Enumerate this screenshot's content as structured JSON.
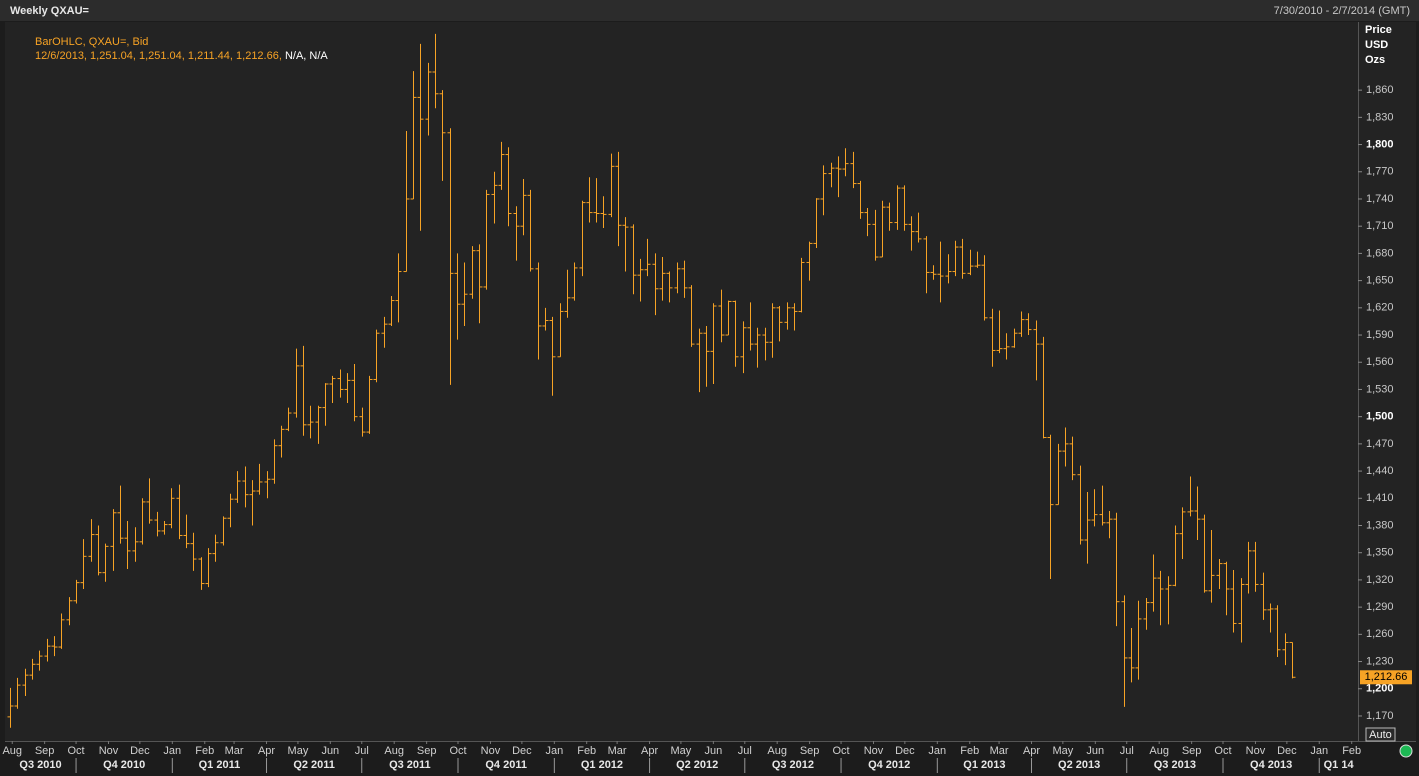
{
  "chart_data": {
    "type": "ohlc",
    "title": "Weekly QXAU=",
    "date_range": "7/30/2010 - 2/7/2014 (GMT)",
    "legend": [
      "BarOHLC, QXAU=, Bid",
      "12/6/2013, 1,251.04, 1,251.04, 1,211.44, 1,212.66,",
      "N/A, N/A"
    ],
    "y_axis_label": [
      "Price",
      "USD",
      "Ozs"
    ],
    "color": "#f7a325",
    "last_value_label": "1,212.66",
    "auto_button": "Auto",
    "xlim": [
      -0.7,
      184
    ],
    "ylim": [
      1143.5,
      1923
    ],
    "yticks": [
      {
        "value": 1170,
        "label": "1,170"
      },
      {
        "value": 1200,
        "label": "1,200"
      },
      {
        "value": 1230,
        "label": "1,230"
      },
      {
        "value": 1260,
        "label": "1,260"
      },
      {
        "value": 1290,
        "label": "1,290"
      },
      {
        "value": 1320,
        "label": "1,320"
      },
      {
        "value": 1350,
        "label": "1,350"
      },
      {
        "value": 1380,
        "label": "1,380"
      },
      {
        "value": 1410,
        "label": "1,410"
      },
      {
        "value": 1440,
        "label": "1,440"
      },
      {
        "value": 1470,
        "label": "1,470"
      },
      {
        "value": 1500,
        "label": "1,500"
      },
      {
        "value": 1530,
        "label": "1,530"
      },
      {
        "value": 1560,
        "label": "1,560"
      },
      {
        "value": 1590,
        "label": "1,590"
      },
      {
        "value": 1620,
        "label": "1,620"
      },
      {
        "value": 1650,
        "label": "1,650"
      },
      {
        "value": 1680,
        "label": "1,680"
      },
      {
        "value": 1710,
        "label": "1,710"
      },
      {
        "value": 1740,
        "label": "1,740"
      },
      {
        "value": 1770,
        "label": "1,770"
      },
      {
        "value": 1800,
        "label": "1,800"
      },
      {
        "value": 1830,
        "label": "1,830"
      },
      {
        "value": 1860,
        "label": "1,860"
      }
    ],
    "xticks": [
      {
        "value": 0.29,
        "label": "Aug"
      },
      {
        "value": 4.71,
        "label": "Sep"
      },
      {
        "value": 9,
        "label": "Oct"
      },
      {
        "value": 13.43,
        "label": "Nov"
      },
      {
        "value": 17.71,
        "label": "Dec"
      },
      {
        "value": 22.14,
        "label": "Jan"
      },
      {
        "value": 26.57,
        "label": "Feb"
      },
      {
        "value": 30.57,
        "label": "Mar"
      },
      {
        "value": 35,
        "label": "Apr"
      },
      {
        "value": 39.29,
        "label": "May"
      },
      {
        "value": 43.71,
        "label": "Jun"
      },
      {
        "value": 48,
        "label": "Jul"
      },
      {
        "value": 52.43,
        "label": "Aug"
      },
      {
        "value": 56.86,
        "label": "Sep"
      },
      {
        "value": 61.14,
        "label": "Oct"
      },
      {
        "value": 65.57,
        "label": "Nov"
      },
      {
        "value": 69.86,
        "label": "Dec"
      },
      {
        "value": 74.29,
        "label": "Jan"
      },
      {
        "value": 78.71,
        "label": "Feb"
      },
      {
        "value": 82.86,
        "label": "Mar"
      },
      {
        "value": 87.29,
        "label": "Apr"
      },
      {
        "value": 91.57,
        "label": "May"
      },
      {
        "value": 96,
        "label": "Jun"
      },
      {
        "value": 100.29,
        "label": "Jul"
      },
      {
        "value": 104.71,
        "label": "Aug"
      },
      {
        "value": 109.14,
        "label": "Sep"
      },
      {
        "value": 113.43,
        "label": "Oct"
      },
      {
        "value": 117.86,
        "label": "Nov"
      },
      {
        "value": 122.14,
        "label": "Dec"
      },
      {
        "value": 126.57,
        "label": "Jan"
      },
      {
        "value": 131,
        "label": "Feb"
      },
      {
        "value": 135,
        "label": "Mar"
      },
      {
        "value": 139.43,
        "label": "Apr"
      },
      {
        "value": 143.71,
        "label": "May"
      },
      {
        "value": 148.14,
        "label": "Jun"
      },
      {
        "value": 152.43,
        "label": "Jul"
      },
      {
        "value": 156.86,
        "label": "Aug"
      },
      {
        "value": 161.29,
        "label": "Sep"
      },
      {
        "value": 165.57,
        "label": "Oct"
      },
      {
        "value": 170,
        "label": "Nov"
      },
      {
        "value": 174.29,
        "label": "Dec"
      },
      {
        "value": 178.71,
        "label": "Jan"
      },
      {
        "value": 183.14,
        "label": "Feb"
      }
    ],
    "x2ticks": [
      {
        "value": -4.14,
        "label": "Q3 2010"
      },
      {
        "value": 9,
        "label": "Q4 2010"
      },
      {
        "value": 22.14,
        "label": "Q1 2011"
      },
      {
        "value": 35,
        "label": "Q2 2011"
      },
      {
        "value": 48,
        "label": "Q3 2011"
      },
      {
        "value": 61.14,
        "label": "Q4 2011"
      },
      {
        "value": 74.29,
        "label": "Q1 2012"
      },
      {
        "value": 87.29,
        "label": "Q2 2012"
      },
      {
        "value": 100.29,
        "label": "Q3 2012"
      },
      {
        "value": 113.43,
        "label": "Q4 2012"
      },
      {
        "value": 126.57,
        "label": "Q1 2013"
      },
      {
        "value": 139.43,
        "label": "Q2 2013"
      },
      {
        "value": 152.43,
        "label": "Q3 2013"
      },
      {
        "value": 165.57,
        "label": "Q4 2013"
      },
      {
        "value": 178.71,
        "label": "Q1 14"
      }
    ],
    "ohlc": [
      [
        1169,
        1201,
        1157,
        1181
      ],
      [
        1181,
        1212,
        1178,
        1204
      ],
      [
        1204,
        1222,
        1192,
        1215
      ],
      [
        1215,
        1233,
        1210,
        1227
      ],
      [
        1227,
        1242,
        1220,
        1236
      ],
      [
        1236,
        1255,
        1230,
        1247
      ],
      [
        1247,
        1258,
        1236,
        1246
      ],
      [
        1246,
        1283,
        1244,
        1276
      ],
      [
        1276,
        1301,
        1270,
        1297
      ],
      [
        1297,
        1320,
        1294,
        1317
      ],
      [
        1317,
        1365,
        1310,
        1346
      ],
      [
        1346,
        1387,
        1340,
        1370
      ],
      [
        1370,
        1380,
        1325,
        1328
      ],
      [
        1328,
        1360,
        1318,
        1357
      ],
      [
        1357,
        1398,
        1330,
        1394
      ],
      [
        1394,
        1424,
        1360,
        1366
      ],
      [
        1366,
        1385,
        1332,
        1352
      ],
      [
        1352,
        1378,
        1340,
        1362
      ],
      [
        1362,
        1410,
        1359,
        1406
      ],
      [
        1406,
        1432,
        1382,
        1386
      ],
      [
        1386,
        1395,
        1368,
        1374
      ],
      [
        1374,
        1385,
        1370,
        1381
      ],
      [
        1381,
        1421,
        1377,
        1410
      ],
      [
        1410,
        1425,
        1365,
        1369
      ],
      [
        1369,
        1392,
        1355,
        1360
      ],
      [
        1360,
        1372,
        1330,
        1343
      ],
      [
        1343,
        1345,
        1309,
        1316
      ],
      [
        1316,
        1355,
        1312,
        1349
      ],
      [
        1349,
        1370,
        1340,
        1361
      ],
      [
        1361,
        1390,
        1358,
        1388
      ],
      [
        1388,
        1415,
        1378,
        1409
      ],
      [
        1409,
        1440,
        1405,
        1429
      ],
      [
        1429,
        1445,
        1400,
        1414
      ],
      [
        1414,
        1430,
        1380,
        1418
      ],
      [
        1418,
        1448,
        1414,
        1428
      ],
      [
        1428,
        1440,
        1410,
        1431
      ],
      [
        1431,
        1475,
        1426,
        1468
      ],
      [
        1468,
        1490,
        1455,
        1486
      ],
      [
        1486,
        1510,
        1484,
        1504
      ],
      [
        1504,
        1575,
        1499,
        1556
      ],
      [
        1556,
        1578,
        1479,
        1491
      ],
      [
        1491,
        1512,
        1476,
        1494
      ],
      [
        1494,
        1512,
        1470,
        1510
      ],
      [
        1510,
        1537,
        1490,
        1536
      ],
      [
        1536,
        1545,
        1515,
        1542
      ],
      [
        1542,
        1552,
        1521,
        1530
      ],
      [
        1530,
        1548,
        1515,
        1540
      ],
      [
        1540,
        1558,
        1495,
        1500
      ],
      [
        1500,
        1510,
        1478,
        1483
      ],
      [
        1483,
        1545,
        1481,
        1541
      ],
      [
        1541,
        1596,
        1538,
        1592
      ],
      [
        1592,
        1610,
        1576,
        1602
      ],
      [
        1602,
        1633,
        1600,
        1628
      ],
      [
        1628,
        1680,
        1604,
        1660
      ],
      [
        1660,
        1815,
        1660,
        1740
      ],
      [
        1740,
        1881,
        1740,
        1852
      ],
      [
        1852,
        1911,
        1705,
        1828
      ],
      [
        1828,
        1890,
        1810,
        1880
      ],
      [
        1880,
        1922,
        1840,
        1856
      ],
      [
        1856,
        1860,
        1760,
        1813
      ],
      [
        1813,
        1818,
        1535,
        1658
      ],
      [
        1658,
        1680,
        1585,
        1624
      ],
      [
        1624,
        1670,
        1600,
        1635
      ],
      [
        1635,
        1688,
        1630,
        1683
      ],
      [
        1683,
        1690,
        1603,
        1643
      ],
      [
        1643,
        1750,
        1640,
        1745
      ],
      [
        1745,
        1770,
        1713,
        1755
      ],
      [
        1755,
        1803,
        1750,
        1789
      ],
      [
        1789,
        1797,
        1710,
        1724
      ],
      [
        1724,
        1732,
        1672,
        1710
      ],
      [
        1710,
        1762,
        1700,
        1744
      ],
      [
        1744,
        1750,
        1660,
        1663
      ],
      [
        1663,
        1670,
        1563,
        1600
      ],
      [
        1600,
        1620,
        1595,
        1606
      ],
      [
        1606,
        1610,
        1523,
        1566
      ],
      [
        1566,
        1625,
        1566,
        1616
      ],
      [
        1616,
        1662,
        1609,
        1631
      ],
      [
        1631,
        1670,
        1628,
        1664
      ],
      [
        1664,
        1738,
        1655,
        1736
      ],
      [
        1736,
        1764,
        1714,
        1725
      ],
      [
        1725,
        1763,
        1714,
        1724
      ],
      [
        1724,
        1743,
        1708,
        1723
      ],
      [
        1723,
        1790,
        1720,
        1776
      ],
      [
        1776,
        1792,
        1688,
        1711
      ],
      [
        1711,
        1720,
        1660,
        1709
      ],
      [
        1709,
        1712,
        1635,
        1656
      ],
      [
        1656,
        1674,
        1627,
        1662
      ],
      [
        1662,
        1696,
        1655,
        1668
      ],
      [
        1668,
        1680,
        1612,
        1641
      ],
      [
        1641,
        1676,
        1628,
        1658
      ],
      [
        1658,
        1660,
        1626,
        1642
      ],
      [
        1642,
        1670,
        1636,
        1663
      ],
      [
        1663,
        1672,
        1631,
        1642
      ],
      [
        1642,
        1645,
        1577,
        1580
      ],
      [
        1580,
        1597,
        1527,
        1592
      ],
      [
        1592,
        1600,
        1533,
        1572
      ],
      [
        1572,
        1625,
        1536,
        1622
      ],
      [
        1622,
        1640,
        1582,
        1590
      ],
      [
        1590,
        1628,
        1590,
        1627
      ],
      [
        1627,
        1628,
        1555,
        1566
      ],
      [
        1566,
        1605,
        1548,
        1598
      ],
      [
        1598,
        1626,
        1573,
        1580
      ],
      [
        1580,
        1598,
        1554,
        1590
      ],
      [
        1590,
        1598,
        1562,
        1582
      ],
      [
        1582,
        1625,
        1565,
        1620
      ],
      [
        1620,
        1622,
        1583,
        1604
      ],
      [
        1604,
        1626,
        1596,
        1620
      ],
      [
        1620,
        1625,
        1595,
        1616
      ],
      [
        1616,
        1675,
        1615,
        1670
      ],
      [
        1670,
        1693,
        1650,
        1691
      ],
      [
        1691,
        1741,
        1686,
        1740
      ],
      [
        1740,
        1777,
        1722,
        1768
      ],
      [
        1768,
        1780,
        1753,
        1774
      ],
      [
        1774,
        1787,
        1742,
        1773
      ],
      [
        1773,
        1796,
        1765,
        1779
      ],
      [
        1779,
        1792,
        1752,
        1757
      ],
      [
        1757,
        1760,
        1718,
        1725
      ],
      [
        1725,
        1730,
        1699,
        1712
      ],
      [
        1712,
        1728,
        1672,
        1676
      ],
      [
        1676,
        1738,
        1676,
        1731
      ],
      [
        1731,
        1736,
        1705,
        1714
      ],
      [
        1714,
        1755,
        1706,
        1752
      ],
      [
        1752,
        1755,
        1705,
        1712
      ],
      [
        1712,
        1721,
        1683,
        1704
      ],
      [
        1704,
        1725,
        1692,
        1696
      ],
      [
        1696,
        1699,
        1636,
        1659
      ],
      [
        1659,
        1667,
        1651,
        1657
      ],
      [
        1657,
        1693,
        1626,
        1655
      ],
      [
        1655,
        1679,
        1647,
        1660
      ],
      [
        1660,
        1694,
        1655,
        1687
      ],
      [
        1687,
        1696,
        1652,
        1658
      ],
      [
        1658,
        1684,
        1656,
        1666
      ],
      [
        1666,
        1682,
        1664,
        1667
      ],
      [
        1667,
        1678,
        1606,
        1609
      ],
      [
        1609,
        1619,
        1555,
        1573
      ],
      [
        1573,
        1617,
        1570,
        1575
      ],
      [
        1575,
        1592,
        1563,
        1577
      ],
      [
        1577,
        1597,
        1576,
        1592
      ],
      [
        1592,
        1616,
        1588,
        1607
      ],
      [
        1607,
        1614,
        1590,
        1596
      ],
      [
        1596,
        1606,
        1540,
        1580
      ],
      [
        1580,
        1588,
        1476,
        1477
      ],
      [
        1477,
        1480,
        1321,
        1403
      ],
      [
        1403,
        1470,
        1403,
        1462
      ],
      [
        1462,
        1488,
        1445,
        1470
      ],
      [
        1470,
        1478,
        1430,
        1436
      ],
      [
        1436,
        1446,
        1359,
        1364
      ],
      [
        1364,
        1417,
        1338,
        1386
      ],
      [
        1386,
        1420,
        1379,
        1392
      ],
      [
        1392,
        1424,
        1380,
        1383
      ],
      [
        1383,
        1396,
        1366,
        1387
      ],
      [
        1387,
        1394,
        1269,
        1296
      ],
      [
        1296,
        1303,
        1180,
        1234
      ],
      [
        1234,
        1267,
        1207,
        1223
      ],
      [
        1223,
        1297,
        1210,
        1277
      ],
      [
        1277,
        1300,
        1265,
        1295
      ],
      [
        1295,
        1348,
        1285,
        1322
      ],
      [
        1322,
        1330,
        1270,
        1310
      ],
      [
        1310,
        1324,
        1271,
        1314
      ],
      [
        1314,
        1380,
        1313,
        1371
      ],
      [
        1371,
        1400,
        1343,
        1395
      ],
      [
        1395,
        1434,
        1390,
        1396
      ],
      [
        1396,
        1423,
        1364,
        1387
      ],
      [
        1387,
        1392,
        1306,
        1308
      ],
      [
        1308,
        1375,
        1295,
        1325
      ],
      [
        1325,
        1343,
        1310,
        1338
      ],
      [
        1338,
        1340,
        1281,
        1310
      ],
      [
        1310,
        1331,
        1262,
        1272
      ],
      [
        1272,
        1322,
        1251,
        1315
      ],
      [
        1315,
        1362,
        1305,
        1352
      ],
      [
        1352,
        1362,
        1307,
        1315
      ],
      [
        1315,
        1328,
        1276,
        1287
      ],
      [
        1287,
        1294,
        1262,
        1288
      ],
      [
        1288,
        1292,
        1235,
        1243
      ],
      [
        1243,
        1261,
        1226,
        1251
      ],
      [
        1251.04,
        1251.04,
        1211.44,
        1212.66
      ]
    ]
  }
}
